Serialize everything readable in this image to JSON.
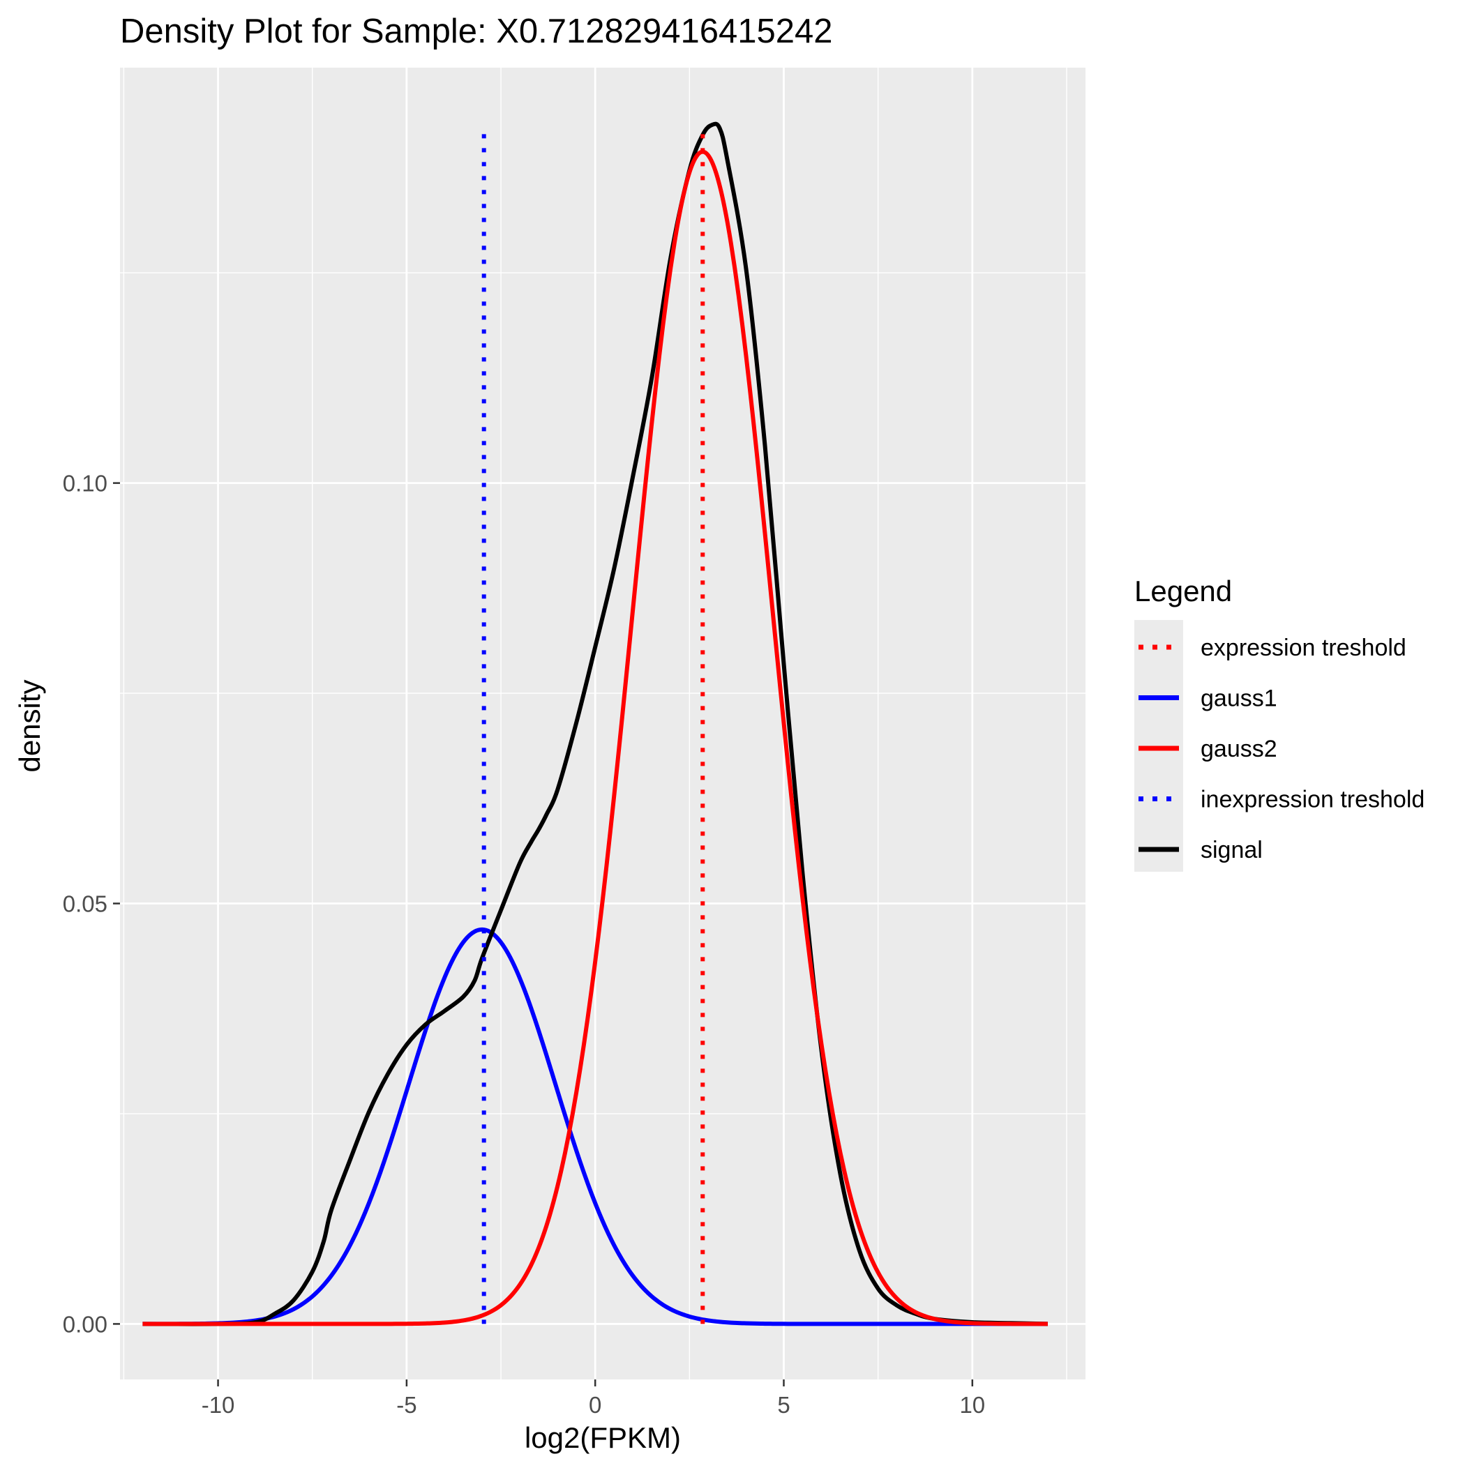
{
  "chart_data": {
    "type": "line",
    "title": "Density Plot for Sample: X0.712829416415242",
    "xlabel": "log2(FPKM)",
    "ylabel": "density",
    "xlim": [
      -12.6,
      13.0
    ],
    "ylim": [
      -0.0066,
      0.1494
    ],
    "x_ticks": [
      -10,
      -5,
      0,
      5,
      10
    ],
    "x_tick_labels": [
      "-10",
      "-5",
      "0",
      "5",
      "10"
    ],
    "y_ticks": [
      0.0,
      0.05,
      0.1
    ],
    "y_tick_labels": [
      "0.00",
      "0.05",
      "0.10"
    ],
    "grid": true,
    "panel_background": "#EBEBEB",
    "legend": {
      "title": "Legend",
      "placement": "right",
      "entries": [
        {
          "label": "expression treshold",
          "color": "#FF0000",
          "linetype": "dotted"
        },
        {
          "label": "gauss1",
          "color": "#0000FF",
          "linetype": "solid"
        },
        {
          "label": "gauss2",
          "color": "#FF0000",
          "linetype": "solid"
        },
        {
          "label": "inexpression treshold",
          "color": "#0000FF",
          "linetype": "dotted"
        },
        {
          "label": "signal",
          "color": "#000000",
          "linetype": "solid"
        }
      ]
    },
    "series": [
      {
        "name": "gauss1",
        "color": "#0000FF",
        "kind": "normal",
        "mean": -3.0,
        "sd": 1.95,
        "peak": 0.0469,
        "x_range": [
          -12,
          12
        ]
      },
      {
        "name": "gauss2",
        "color": "#FF0000",
        "kind": "normal",
        "mean": 2.85,
        "sd": 1.86,
        "peak": 0.1394,
        "x_range": [
          -12,
          12
        ]
      },
      {
        "name": "signal",
        "color": "#000000",
        "kind": "points",
        "x": [
          -12,
          -10,
          -9,
          -8.5,
          -8,
          -7.5,
          -7.2,
          -7,
          -6.5,
          -6,
          -5.5,
          -5,
          -4.5,
          -4,
          -3.5,
          -3.2,
          -3,
          -2.5,
          -2,
          -1.7,
          -1.5,
          -1.3,
          -1,
          -0.5,
          0,
          0.5,
          1,
          1.5,
          2,
          2.5,
          2.85,
          3.1,
          3.3,
          3.5,
          4,
          4.5,
          5,
          5.5,
          6,
          6.5,
          7,
          7.5,
          8,
          8.5,
          9,
          10,
          11,
          12
        ],
        "y": [
          0.0,
          0.0,
          0.0002,
          0.0012,
          0.0028,
          0.0062,
          0.0098,
          0.0135,
          0.0195,
          0.0252,
          0.0297,
          0.0332,
          0.0356,
          0.0372,
          0.0389,
          0.0408,
          0.0435,
          0.0492,
          0.0548,
          0.0573,
          0.0588,
          0.0605,
          0.0635,
          0.0715,
          0.0805,
          0.0898,
          0.1008,
          0.1125,
          0.1268,
          0.1372,
          0.1414,
          0.1426,
          0.1422,
          0.1385,
          0.1255,
          0.1045,
          0.0785,
          0.0535,
          0.0325,
          0.0178,
          0.0088,
          0.0042,
          0.0022,
          0.0012,
          0.0006,
          0.0002,
          0.0001,
          0.0
        ]
      }
    ],
    "vlines": [
      {
        "name": "inexpression treshold",
        "x": -2.95,
        "color": "#0000FF",
        "linetype": "dotted",
        "y_range": [
          0.0,
          0.1426
        ]
      },
      {
        "name": "expression treshold",
        "x": 2.85,
        "color": "#FF0000",
        "linetype": "dotted",
        "y_range": [
          0.0,
          0.1426
        ]
      }
    ]
  }
}
